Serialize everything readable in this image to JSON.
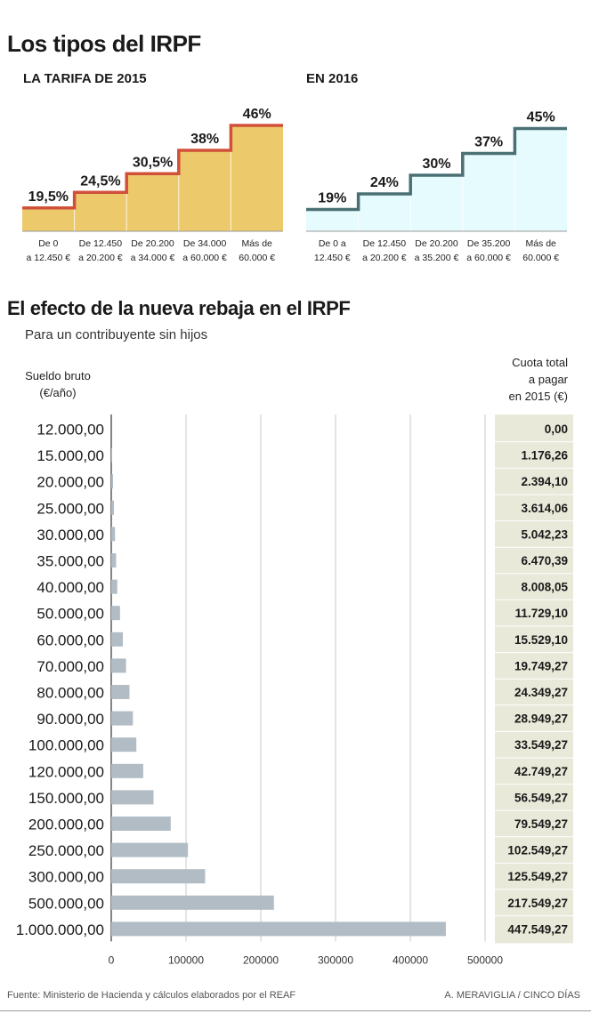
{
  "header": {
    "title": "Los tipos del IRPF"
  },
  "tarifa_2015": {
    "heading": "LA TARIFA DE 2015",
    "rates": [
      "19,5%",
      "24,5%",
      "30,5%",
      "38%",
      "46%"
    ],
    "brackets": [
      [
        "De 0",
        "a 12.450 €"
      ],
      [
        "De 12.450",
        "a 20.200 €"
      ],
      [
        "De 20.200",
        "a 34.000 €"
      ],
      [
        "De 34.000",
        "a 60.000 €"
      ],
      [
        "Más de",
        "60.000 €"
      ]
    ],
    "values": [
      19.5,
      24.5,
      30.5,
      38,
      46
    ],
    "fill_color": "#ecca6b",
    "line_color": "#d1503a"
  },
  "tarifa_2016": {
    "heading": "EN 2016",
    "rates": [
      "19%",
      "24%",
      "30%",
      "37%",
      "45%"
    ],
    "brackets": [
      [
        "De 0 a",
        "12.450 €"
      ],
      [
        "De 12.450",
        "a 20.200 €"
      ],
      [
        "De 20.200",
        "a 35.200 €"
      ],
      [
        "De 35.200",
        "a 60.000 €"
      ],
      [
        "Más de",
        "60.000 €"
      ]
    ],
    "values": [
      19,
      24,
      30,
      37,
      45
    ],
    "fill_color": "#e6fbfd",
    "line_color": "#4a7075"
  },
  "efecto": {
    "title": "El efecto de la nueva rebaja en el IRPF",
    "subtitle": "Para un contribuyente sin hijos",
    "left_header": [
      "Sueldo bruto",
      "(€/año)"
    ],
    "right_header": [
      "Cuota total",
      "a pagar",
      "en 2015 (€)"
    ]
  },
  "chart_data": [
    {
      "type": "line",
      "title": "LA TARIFA DE 2015",
      "categories": [
        "De 0 a 12.450 €",
        "De 12.450 a 20.200 €",
        "De 20.200 a 34.000 €",
        "De 34.000 a 60.000 €",
        "Más de 60.000 €"
      ],
      "values": [
        19.5,
        24.5,
        30.5,
        38,
        46
      ]
    },
    {
      "type": "line",
      "title": "EN 2016",
      "categories": [
        "De 0 a 12.450 €",
        "De 12.450 a 20.200 €",
        "De 20.200 a 35.200 €",
        "De 35.200 a 60.000 €",
        "Más de 60.000 €"
      ],
      "values": [
        19,
        24,
        30,
        37,
        45
      ]
    },
    {
      "type": "bar",
      "title": "El efecto de la nueva rebaja en el IRPF",
      "subtitle": "Para un contribuyente sin hijos",
      "categories": [
        "12.000,00",
        "15.000,00",
        "20.000,00",
        "25.000,00",
        "30.000,00",
        "35.000,00",
        "40.000,00",
        "50.000,00",
        "60.000,00",
        "70.000,00",
        "80.000,00",
        "90.000,00",
        "100.000,00",
        "120.000,00",
        "150.000,00",
        "200.000,00",
        "250.000,00",
        "300.000,00",
        "500.000,00",
        "1.000.000,00"
      ],
      "values": [
        0,
        1176.26,
        2394.1,
        3614.06,
        5042.23,
        6470.39,
        8008.05,
        11729.1,
        15529.1,
        19749.27,
        24349.27,
        28949.27,
        33549.27,
        42749.27,
        56549.27,
        79549.27,
        102549.27,
        125549.27,
        217549.27,
        447549.27
      ],
      "value_labels": [
        "0,00",
        "1.176,26",
        "2.394,10",
        "3.614,06",
        "5.042,23",
        "6.470,39",
        "8.008,05",
        "11.729,10",
        "15.529,10",
        "19.749,27",
        "24.349,27",
        "28.949,27",
        "33.549,27",
        "42.749,27",
        "56.549,27",
        "79.549,27",
        "102.549,27",
        "125.549,27",
        "217.549,27",
        "447.549,27"
      ],
      "xlim": [
        0,
        500000
      ],
      "xticks": [
        "0",
        "100000",
        "200000",
        "300000",
        "400000",
        "500000"
      ],
      "grid": true,
      "orientation": "horizontal",
      "bar_color": "#b1bcc4",
      "label_bg": "#e8e9d8"
    }
  ],
  "footer": {
    "source": "Fuente: Ministerio de Hacienda y cálculos elaborados por el REAF",
    "credit": "A. MERAVIGLIA / CINCO DÍAS"
  }
}
